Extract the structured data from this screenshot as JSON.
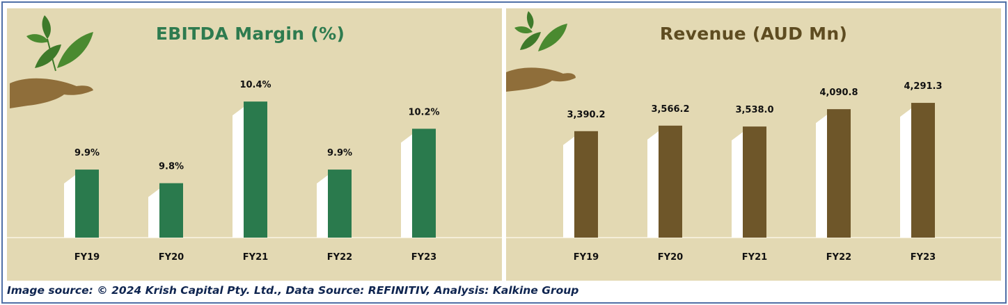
{
  "colors": {
    "frame": "#4f6fa6",
    "panel_bg": "#e3d9b3",
    "ebitda_bar": "#2a7a4d",
    "revenue_bar": "#6e5629",
    "leaf": "#3e7a2a",
    "hand": "#8f6e3a"
  },
  "icons": {
    "left": "plant-in-hand-icon",
    "right": "plant-in-hand-icon"
  },
  "footer": "Image source: © 2024 Krish Capital Pty. Ltd., Data Source: REFINITIV, Analysis: Kalkine Group",
  "chart_data": [
    {
      "type": "bar",
      "title": "EBITDA Margin (%)",
      "categories": [
        "FY19",
        "FY20",
        "FY21",
        "FY22",
        "FY23"
      ],
      "values": [
        9.9,
        9.8,
        10.4,
        9.9,
        10.2
      ],
      "labels": [
        "9.9%",
        "9.8%",
        "10.4%",
        "9.9%",
        "10.2%"
      ],
      "ylim": [
        9.4,
        10.6
      ],
      "grid": false,
      "legend": "none"
    },
    {
      "type": "bar",
      "title": "Revenue (AUD Mn)",
      "categories": [
        "FY19",
        "FY20",
        "FY21",
        "FY22",
        "FY23"
      ],
      "values": [
        3390.2,
        3566.2,
        3538.0,
        4090.8,
        4291.3
      ],
      "labels": [
        "3,390.2",
        "3,566.2",
        "3,538.0",
        "4,090.8",
        "4,291.3"
      ],
      "ylim": [
        0,
        5200
      ],
      "grid": false,
      "legend": "none"
    }
  ]
}
